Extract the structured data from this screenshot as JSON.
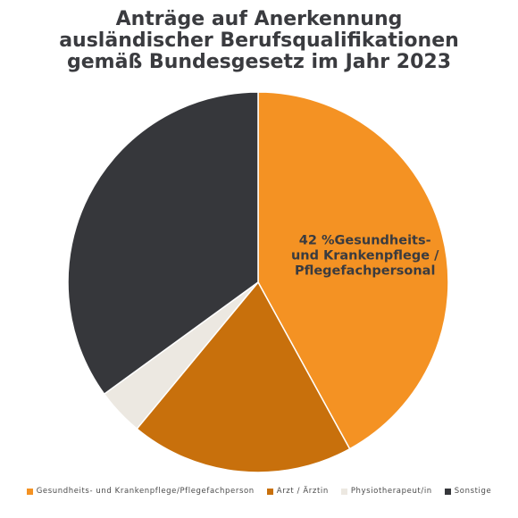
{
  "chart_data": {
    "type": "pie",
    "title_lines": [
      "Anträge auf Anerkennung",
      "ausländischer Berufsqualifikationen",
      "gemäß Bundesgesetz im Jahr 2023"
    ],
    "start_angle_deg": 0,
    "direction": "clockwise",
    "slices": [
      {
        "name": "Gesundheits- und Krankenpflege/Pflegefachperson",
        "value": 42,
        "color": "#f49223"
      },
      {
        "name": "Arzt / Ärztin",
        "value": 19,
        "color": "#c8700c"
      },
      {
        "name": "Physiotherapeut/in",
        "value": 4,
        "color": "#ece8e1"
      },
      {
        "name": "Sonstige",
        "value": 35,
        "color": "#36373b"
      }
    ],
    "data_labels": [
      {
        "slice": 0,
        "lines": [
          "42 %Gesundheits-",
          "und Krankenpflege /",
          "Pflegefachpersonal"
        ],
        "color": "#3a3b3f"
      }
    ],
    "legend_position": "bottom"
  }
}
